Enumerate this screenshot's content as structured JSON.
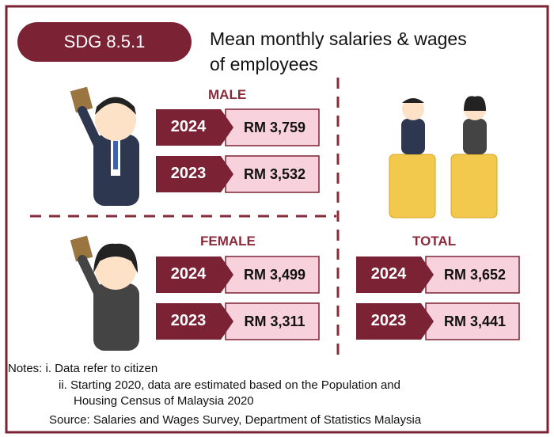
{
  "badge": "SDG 8.5.1",
  "title": [
    "Mean monthly salaries & wages",
    "of employees"
  ],
  "sections": [
    {
      "label": "MALE",
      "rows": [
        {
          "year": "2024",
          "value": "RM 3,759"
        },
        {
          "year": "2023",
          "value": "RM 3,532"
        }
      ]
    },
    {
      "label": "FEMALE",
      "rows": [
        {
          "year": "2024",
          "value": "RM 3,499"
        },
        {
          "year": "2023",
          "value": "RM 3,311"
        }
      ]
    },
    {
      "label": "TOTAL",
      "rows": [
        {
          "year": "2024",
          "value": "RM 3,652"
        },
        {
          "year": "2023",
          "value": "RM 3,441"
        }
      ]
    }
  ],
  "notes": [
    "Notes: i. Data refer to citizen",
    "ii. Starting 2020, data are estimated based on the Population and",
    "Housing Census of Malaysia 2020"
  ],
  "source": "Source: Salaries and Wages Survey, Department of Statistics Malaysia"
}
